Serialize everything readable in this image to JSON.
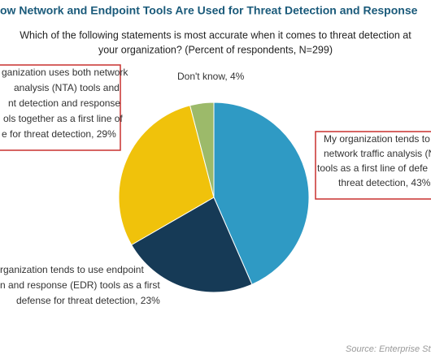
{
  "chart_data": {
    "type": "pie",
    "title": "ow Network and Endpoint Tools Are Used for Threat Detection and Response",
    "subtitle": [
      "Which of the following statements is most accurate when it comes to threat detection at",
      "your organization? (Percent of respondents, N=299)"
    ],
    "categories": [
      [
        "My organization tends to",
        "network traffic analysis (N",
        "tools as a first line of defe",
        "threat detection, 43%"
      ],
      [
        "rganization tends to use endpoint",
        "n and response (EDR) tools as a first",
        "defense for threat detection, 23%"
      ],
      [
        "ganization uses both network",
        "analysis (NTA) tools and",
        "nt detection and response",
        "ols together as a first line of",
        "e for threat detection, 29%"
      ],
      [
        "Don't know, 4%"
      ]
    ],
    "values": [
      43,
      23,
      29,
      4
    ],
    "colors": [
      "#2f9ac4",
      "#163a56",
      "#f0c20b",
      "#9cba6a"
    ],
    "source": "Source: Enterprise Str"
  }
}
